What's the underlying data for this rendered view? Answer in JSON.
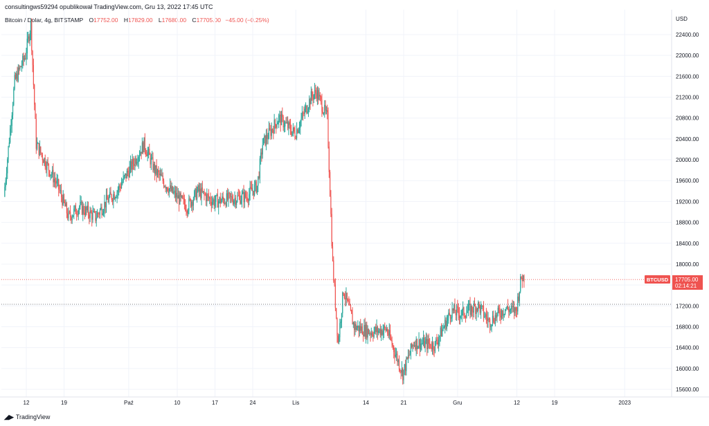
{
  "header": {
    "published": "consultingws59294 opublikował TradingView.com, Gru 13, 2022 17:45 UTC"
  },
  "legend": {
    "symbol": "Bitcoin / Dolar, 4g, BITSTAMP",
    "o_label": "O",
    "o_value": "17752.00",
    "h_label": "H",
    "h_value": "17829.00",
    "l_label": "L",
    "l_value": "17680.00",
    "c_label": "C",
    "c_value": "17705.00",
    "change": "−45.00 (−0.25%)"
  },
  "footer": {
    "brand": "TradingView"
  },
  "colors": {
    "up": "#26a69a",
    "down": "#ef5350",
    "axis_text": "#131722",
    "grid": "#f0f3fa"
  },
  "chart_data": {
    "type": "candlestick",
    "currency": "USD",
    "ylim": [
      15500,
      22700
    ],
    "yticks": [
      "22400.00",
      "22000.00",
      "21600.00",
      "21200.00",
      "20800.00",
      "20400.00",
      "20000.00",
      "19600.00",
      "19200.00",
      "18800.00",
      "18400.00",
      "18000.00",
      "17600.00",
      "17200.00",
      "16800.00",
      "16400.00",
      "16000.00",
      "15600.00"
    ],
    "xticks": [
      "12",
      "19",
      "Paź",
      "10",
      "17",
      "24",
      "Lis",
      "14",
      "21",
      "Gru",
      "12",
      "19",
      "2023"
    ],
    "price_label": {
      "symbol": "BTCUSD",
      "price": "17705.00",
      "countdown": "02:14:21"
    },
    "reference_level": 17705,
    "support_level": 17230,
    "anchors": [
      {
        "d": "Sep 8",
        "p": 19300
      },
      {
        "d": "Sep 10",
        "p": 21500
      },
      {
        "d": "Sep 12",
        "p": 22000
      },
      {
        "d": "Sep 13",
        "p": 22600
      },
      {
        "d": "Sep 14",
        "p": 20300
      },
      {
        "d": "Sep 16",
        "p": 19900
      },
      {
        "d": "Sep 18",
        "p": 19500
      },
      {
        "d": "Sep 20",
        "p": 18900
      },
      {
        "d": "Sep 22",
        "p": 19100
      },
      {
        "d": "Sep 25",
        "p": 18900
      },
      {
        "d": "Sep 27",
        "p": 19200
      },
      {
        "d": "Sep 29",
        "p": 19400
      },
      {
        "d": "Oct 4",
        "p": 20300
      },
      {
        "d": "Oct 6",
        "p": 19800
      },
      {
        "d": "Oct 9",
        "p": 19400
      },
      {
        "d": "Oct 12",
        "p": 19100
      },
      {
        "d": "Oct 14",
        "p": 19400
      },
      {
        "d": "Oct 17",
        "p": 19200
      },
      {
        "d": "Oct 20",
        "p": 19250
      },
      {
        "d": "Oct 23",
        "p": 19300
      },
      {
        "d": "Oct 25",
        "p": 19500
      },
      {
        "d": "Oct 26",
        "p": 20300
      },
      {
        "d": "Oct 29",
        "p": 20800
      },
      {
        "d": "Nov 1",
        "p": 20500
      },
      {
        "d": "Nov 4",
        "p": 21200
      },
      {
        "d": "Nov 5",
        "p": 21300
      },
      {
        "d": "Nov 7",
        "p": 20800
      },
      {
        "d": "Nov 8",
        "p": 18000
      },
      {
        "d": "Nov 9",
        "p": 16500
      },
      {
        "d": "Nov 10",
        "p": 17500
      },
      {
        "d": "Nov 12",
        "p": 16800
      },
      {
        "d": "Nov 15",
        "p": 16700
      },
      {
        "d": "Nov 18",
        "p": 16750
      },
      {
        "d": "Nov 21",
        "p": 15900
      },
      {
        "d": "Nov 23",
        "p": 16500
      },
      {
        "d": "Nov 27",
        "p": 16450
      },
      {
        "d": "Nov 30",
        "p": 17100
      },
      {
        "d": "Dec 2",
        "p": 17050
      },
      {
        "d": "Dec 5",
        "p": 17200
      },
      {
        "d": "Dec 7",
        "p": 16900
      },
      {
        "d": "Dec 10",
        "p": 17150
      },
      {
        "d": "Dec 12",
        "p": 17100
      },
      {
        "d": "Dec 13",
        "p": 17750
      }
    ]
  }
}
